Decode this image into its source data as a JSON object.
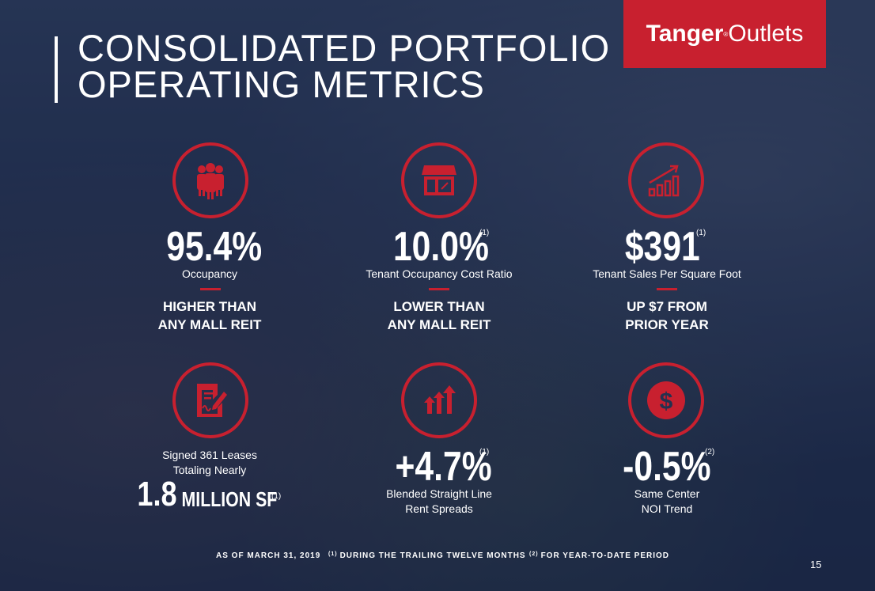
{
  "title": {
    "line1": "CONSOLIDATED PORTFOLIO",
    "line2": "OPERATING METRICS"
  },
  "logo": {
    "bold": "Tanger",
    "reg": "®",
    "light": "Outlets"
  },
  "metrics": {
    "occupancy": {
      "value": "95.4%",
      "label": "Occupancy",
      "note1": "HIGHER THAN",
      "note2": "ANY MALL REIT",
      "icon": "people-icon"
    },
    "cost_ratio": {
      "value": "10.0%",
      "sup": "(1)",
      "label": "Tenant Occupancy Cost Ratio",
      "note1": "LOWER THAN",
      "note2": "ANY MALL REIT",
      "icon": "storefront-icon"
    },
    "sales": {
      "value": "$391",
      "sup": "(1)",
      "label": "Tenant Sales Per Square Foot",
      "note1": "UP $7 FROM",
      "note2": "PRIOR YEAR",
      "icon": "growth-chart-icon"
    },
    "leases": {
      "line1": "Signed 361 Leases",
      "line2": "Totaling Nearly",
      "value": "1.8",
      "unit": "MILLION SF",
      "sup": "(1)",
      "icon": "signed-document-icon"
    },
    "rent": {
      "value": "+4.7%",
      "sup": "(1)",
      "line1": "Blended Straight Line",
      "line2": "Rent Spreads",
      "icon": "up-arrows-icon"
    },
    "noi": {
      "value": "-0.5%",
      "sup": "(2)",
      "line1": "Same Center",
      "line2": "NOI Trend",
      "icon": "dollar-icon"
    }
  },
  "footer": {
    "date": "AS OF MARCH 31, 2019",
    "fn1_mark": "(1)",
    "fn1": "DURING THE TRAILING TWELVE MONTHS",
    "fn2_mark": "(2)",
    "fn2": "FOR YEAR-TO-DATE PERIOD"
  },
  "page_number": "15",
  "colors": {
    "accent": "#c8202f",
    "background": "#24314f"
  }
}
